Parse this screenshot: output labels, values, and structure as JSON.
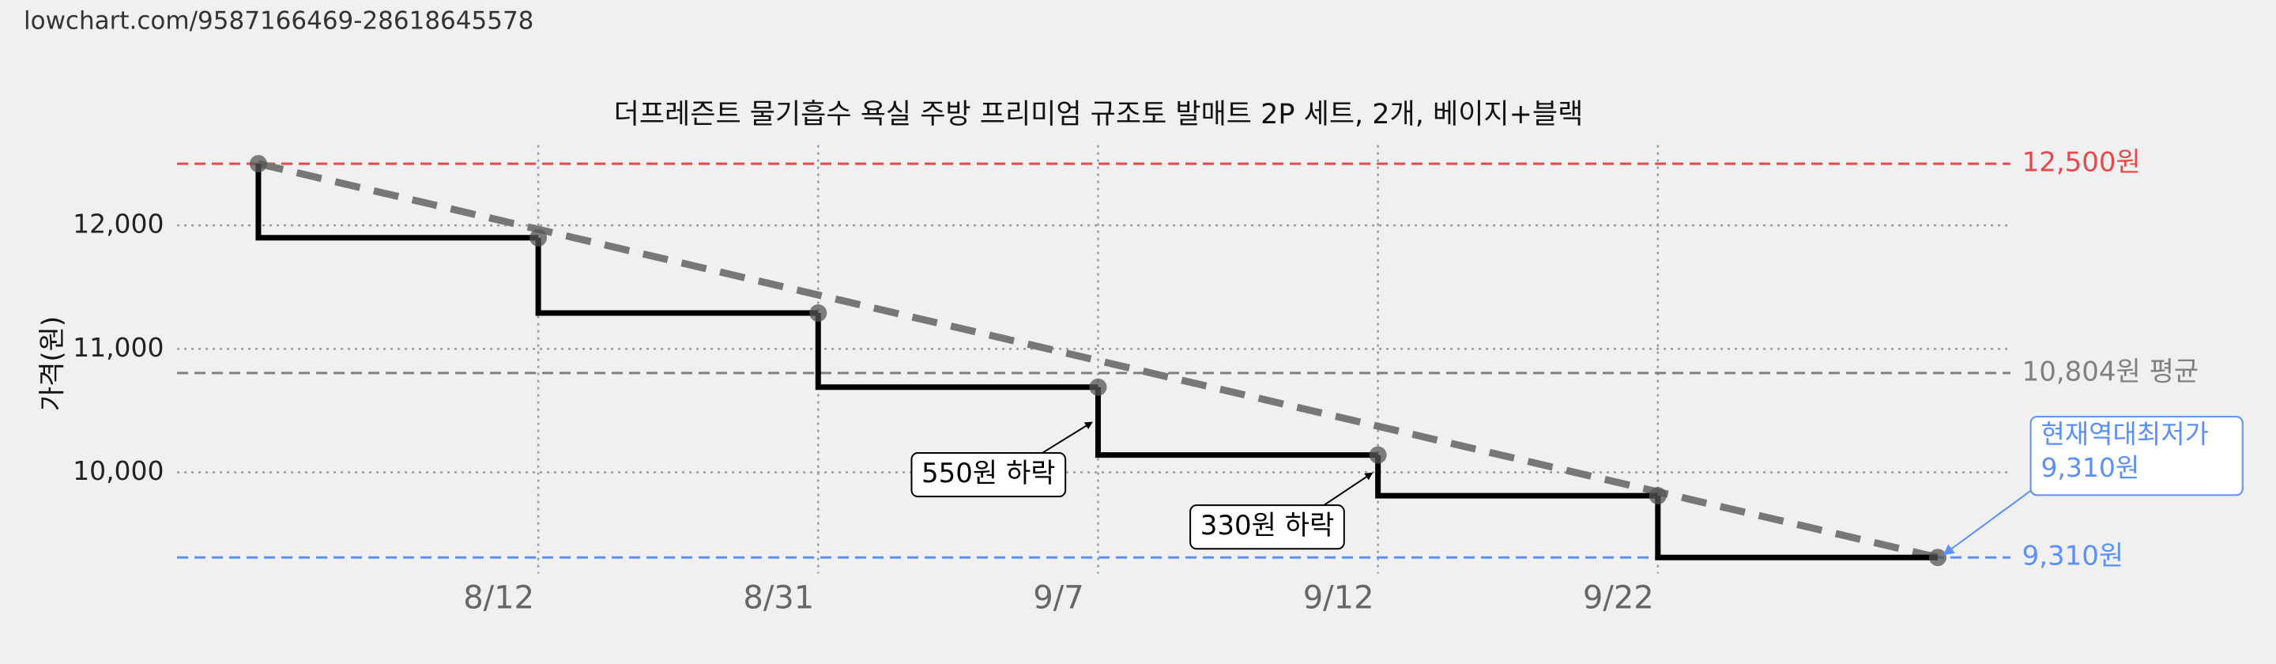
{
  "url": "lowchart.com/9587166469-28618645578",
  "chart_data": {
    "type": "step",
    "title": "더프레즌트 물기흡수 욕실 주방 프리미엄 규조토 발매트 2P 세트, 2개, 베이지+블랙",
    "y_label": "가격(원)",
    "categories": [
      null,
      "8/12",
      "8/31",
      "9/7",
      "9/12",
      "9/22",
      null
    ],
    "series": [
      {
        "color": "#000000",
        "values": [
          12500,
          11900,
          11290,
          10690,
          10140,
          9810,
          9310
        ]
      }
    ],
    "trend_color": "#777777",
    "ylim": [
      9180,
      12650
    ],
    "yticks": [
      {
        "value": 10000,
        "label": "10,000"
      },
      {
        "value": 11000,
        "label": "11,000"
      },
      {
        "value": 12000,
        "label": "12,000"
      }
    ],
    "grid": true,
    "reference_lines": [
      {
        "value": 12500,
        "label": "12,500원",
        "color": "#e8474b"
      },
      {
        "value": 10804,
        "label": "10,804원 평균",
        "color": "#808080"
      },
      {
        "value": 9310,
        "label": "9,310원",
        "color": "#5b8ff9"
      }
    ],
    "annotations": [
      "550원 하락",
      "330원 하락"
    ],
    "callout": [
      "현재역대최저가",
      "9,310원"
    ]
  }
}
